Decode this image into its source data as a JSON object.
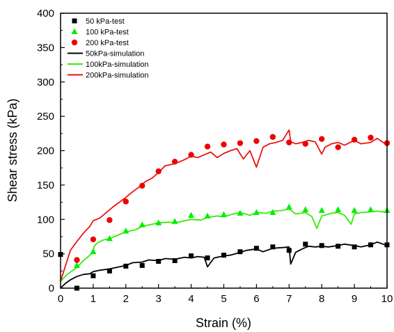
{
  "chart_data": {
    "type": "line",
    "title": "",
    "xlabel": "Strain (%)",
    "ylabel": "Shear stress (kPa)",
    "xlim": [
      0,
      10
    ],
    "ylim": [
      0,
      400
    ],
    "x_ticks": [
      "0",
      "1",
      "2",
      "3",
      "4",
      "5",
      "6",
      "7",
      "8",
      "9",
      "10"
    ],
    "y_ticks": [
      "0",
      "50",
      "100",
      "150",
      "200",
      "250",
      "300",
      "350",
      "400"
    ],
    "grid": false,
    "legend_position": "top-left",
    "series": [
      {
        "name": "50 kPa-test",
        "kind": "scatter",
        "marker": "square",
        "color": "#000000",
        "x": [
          0,
          0.5,
          1,
          1.5,
          2,
          2.5,
          3,
          3.5,
          4,
          4.5,
          5,
          5.5,
          6,
          6.5,
          7,
          7.5,
          8,
          8.5,
          9,
          9.5,
          10
        ],
        "y": [
          49,
          0,
          18,
          25,
          32,
          33,
          39,
          40,
          47,
          44,
          48,
          53,
          58,
          60,
          55,
          64,
          62,
          61,
          60,
          63,
          63
        ]
      },
      {
        "name": "100 kPa-test",
        "kind": "scatter",
        "marker": "triangle",
        "color": "#00ee00",
        "x": [
          0.5,
          1,
          1.5,
          2,
          2.5,
          3,
          3.5,
          4,
          4.5,
          5,
          5.5,
          6,
          6.5,
          7,
          7.5,
          8,
          8.5,
          9,
          9.5,
          10
        ],
        "y": [
          33,
          53,
          72,
          83,
          92,
          95,
          97,
          106,
          105,
          107,
          109,
          110,
          110,
          118,
          114,
          113,
          114,
          113,
          114,
          113
        ]
      },
      {
        "name": "200 kPa-test",
        "kind": "scatter",
        "marker": "circle",
        "color": "#ee0000",
        "x": [
          0.5,
          1,
          1.5,
          2,
          2.5,
          3,
          3.5,
          4,
          4.5,
          5,
          5.5,
          6,
          6.5,
          7,
          7.5,
          8,
          8.5,
          9,
          9.5,
          10
        ],
        "y": [
          41,
          71,
          99,
          126,
          149,
          170,
          184,
          194,
          206,
          209,
          211,
          214,
          220,
          212,
          210,
          217,
          205,
          216,
          219,
          211
        ]
      },
      {
        "name": "50kPa-simulation",
        "kind": "line",
        "color": "#000000",
        "x": [
          0,
          0.15,
          0.3,
          0.5,
          0.7,
          0.9,
          1.0,
          1.2,
          1.5,
          1.7,
          2.0,
          2.2,
          2.5,
          2.7,
          3.0,
          3.2,
          3.5,
          3.8,
          4.0,
          4.2,
          4.4,
          4.5,
          4.7,
          5.0,
          5.2,
          5.5,
          5.7,
          6.0,
          6.2,
          6.5,
          6.8,
          7.0,
          7.05,
          7.2,
          7.4,
          7.6,
          7.8,
          8.0,
          8.2,
          8.5,
          8.7,
          9.0,
          9.2,
          9.5,
          9.7,
          10.0
        ],
        "y": [
          0,
          7,
          12,
          17,
          20,
          21,
          24,
          26,
          28,
          30,
          33,
          37,
          38,
          41,
          40,
          43,
          42,
          45,
          44,
          46,
          45,
          31,
          44,
          47,
          48,
          52,
          55,
          57,
          53,
          58,
          59,
          60,
          35,
          52,
          57,
          61,
          60,
          61,
          60,
          62,
          64,
          62,
          60,
          63,
          67,
          62
        ]
      },
      {
        "name": "100kPa-simulation",
        "kind": "line",
        "color": "#33ee00",
        "x": [
          0,
          0.1,
          0.2,
          0.35,
          0.5,
          0.7,
          0.9,
          1.0,
          1.02,
          1.1,
          1.3,
          1.5,
          1.8,
          2.0,
          2.3,
          2.5,
          2.8,
          3.0,
          3.3,
          3.5,
          3.8,
          4.0,
          4.3,
          4.5,
          4.8,
          5.0,
          5.3,
          5.5,
          5.8,
          6.0,
          6.3,
          6.5,
          6.8,
          7.0,
          7.2,
          7.5,
          7.7,
          7.85,
          8.0,
          8.3,
          8.5,
          8.7,
          8.9,
          9.0,
          9.2,
          9.5,
          9.7,
          10.0
        ],
        "y": [
          10,
          15,
          20,
          25,
          30,
          40,
          48,
          52,
          60,
          65,
          70,
          72,
          78,
          82,
          85,
          90,
          93,
          95,
          96,
          95,
          98,
          100,
          99,
          103,
          105,
          104,
          108,
          110,
          106,
          110,
          109,
          112,
          113,
          115,
          108,
          110,
          104,
          87,
          105,
          109,
          110,
          106,
          93,
          108,
          110,
          111,
          112,
          110
        ]
      },
      {
        "name": "200kPa-simulation",
        "kind": "line",
        "color": "#ee1111",
        "x": [
          0,
          0.1,
          0.2,
          0.3,
          0.5,
          0.7,
          0.9,
          1.0,
          1.2,
          1.4,
          1.6,
          1.8,
          2.0,
          2.2,
          2.4,
          2.6,
          2.8,
          3.0,
          3.2,
          3.4,
          3.6,
          3.8,
          4.0,
          4.2,
          4.4,
          4.6,
          4.8,
          5.0,
          5.2,
          5.4,
          5.6,
          5.8,
          6.0,
          6.2,
          6.4,
          6.6,
          6.8,
          7.0,
          7.05,
          7.2,
          7.4,
          7.6,
          7.8,
          8.0,
          8.1,
          8.3,
          8.5,
          8.7,
          9.0,
          9.2,
          9.5,
          9.7,
          10.0
        ],
        "y": [
          10,
          25,
          40,
          55,
          68,
          80,
          90,
          98,
          102,
          110,
          118,
          125,
          132,
          140,
          147,
          155,
          160,
          168,
          178,
          180,
          183,
          187,
          192,
          190,
          194,
          198,
          190,
          196,
          200,
          203,
          188,
          200,
          176,
          205,
          210,
          212,
          215,
          230,
          213,
          210,
          212,
          215,
          213,
          195,
          205,
          210,
          212,
          208,
          215,
          210,
          212,
          218,
          208
        ]
      }
    ]
  }
}
